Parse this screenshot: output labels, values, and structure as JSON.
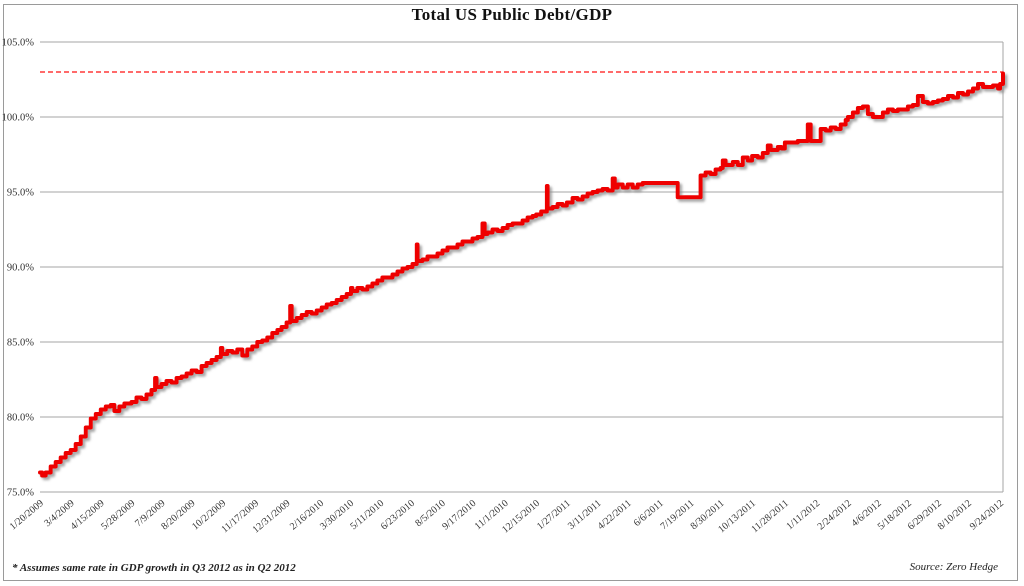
{
  "chart_data": {
    "type": "line",
    "title": "Total US Public Debt/GDP",
    "footnote": "* Assumes same rate in GDP growth in Q3 2012 as in Q2 2012",
    "source": "Source: Zero Hedge",
    "grid": true,
    "legend": "none",
    "ylim": [
      75,
      105
    ],
    "y_tick_labels": [
      "75.0%",
      "80.0%",
      "85.0%",
      "90.0%",
      "95.0%",
      "100.0%",
      "105.0%"
    ],
    "x_domain": [
      "1/20/2009",
      "9/28/2012"
    ],
    "x_tick_labels": [
      "1/20/2009",
      "3/4/2009",
      "4/15/2009",
      "5/28/2009",
      "7/9/2009",
      "8/20/2009",
      "10/2/2009",
      "11/17/2009",
      "12/31/2009",
      "2/16/2010",
      "3/30/2010",
      "5/11/2010",
      "6/23/2010",
      "8/5/2010",
      "9/17/2010",
      "11/1/2010",
      "12/15/2010",
      "1/27/2011",
      "3/11/2011",
      "4/22/2011",
      "6/6/2011",
      "7/19/2011",
      "8/30/2011",
      "10/13/2011",
      "11/28/2011",
      "1/11/2012",
      "2/24/2012",
      "4/6/2012",
      "5/18/2012",
      "6/29/2012",
      "8/10/2012",
      "9/24/2012"
    ],
    "threshold": {
      "value": 103.0,
      "style": "dashed",
      "color": "#ff1111"
    },
    "colors": {
      "line": "#ee0101",
      "grid": "#a6a6a6",
      "text": "#333333",
      "frame": "#9a9a9a",
      "background": "#ffffff",
      "shadow": "#8a8a8a"
    },
    "series": [
      {
        "name": "Total US Public Debt/GDP",
        "color": "#ee0101",
        "points": [
          [
            "1/20/2009",
            76.3
          ],
          [
            "1/23/2009",
            76.1
          ],
          [
            "1/28/2009",
            76.3
          ],
          [
            "2/4/2009",
            76.7
          ],
          [
            "2/11/2009",
            77.0
          ],
          [
            "2/18/2009",
            77.3
          ],
          [
            "2/25/2009",
            77.6
          ],
          [
            "3/4/2009",
            77.8
          ],
          [
            "3/11/2009",
            78.2
          ],
          [
            "3/18/2009",
            78.7
          ],
          [
            "3/25/2009",
            79.3
          ],
          [
            "4/1/2009",
            79.9
          ],
          [
            "4/8/2009",
            80.2
          ],
          [
            "4/15/2009",
            80.5
          ],
          [
            "4/22/2009",
            80.7
          ],
          [
            "4/29/2009",
            80.8
          ],
          [
            "5/4/2009",
            80.4
          ],
          [
            "5/11/2009",
            80.7
          ],
          [
            "5/18/2009",
            80.9
          ],
          [
            "5/28/2009",
            81.0
          ],
          [
            "6/4/2009",
            81.3
          ],
          [
            "6/11/2009",
            81.2
          ],
          [
            "6/18/2009",
            81.5
          ],
          [
            "6/25/2009",
            81.8
          ],
          [
            "6/30/2009",
            82.6
          ],
          [
            "7/2/2009",
            82.0
          ],
          [
            "7/9/2009",
            82.2
          ],
          [
            "7/16/2009",
            82.4
          ],
          [
            "7/23/2009",
            82.3
          ],
          [
            "7/30/2009",
            82.6
          ],
          [
            "8/6/2009",
            82.7
          ],
          [
            "8/13/2009",
            82.9
          ],
          [
            "8/20/2009",
            83.1
          ],
          [
            "8/27/2009",
            83.0
          ],
          [
            "9/3/2009",
            83.4
          ],
          [
            "9/10/2009",
            83.6
          ],
          [
            "9/17/2009",
            83.8
          ],
          [
            "9/24/2009",
            84.0
          ],
          [
            "9/30/2009",
            84.6
          ],
          [
            "10/2/2009",
            84.2
          ],
          [
            "10/9/2009",
            84.4
          ],
          [
            "10/16/2009",
            84.3
          ],
          [
            "10/23/2009",
            84.5
          ],
          [
            "10/30/2009",
            84.1
          ],
          [
            "11/6/2009",
            84.5
          ],
          [
            "11/13/2009",
            84.7
          ],
          [
            "11/20/2009",
            85.0
          ],
          [
            "11/27/2009",
            85.1
          ],
          [
            "12/4/2009",
            85.3
          ],
          [
            "12/11/2009",
            85.6
          ],
          [
            "12/18/2009",
            85.8
          ],
          [
            "12/24/2009",
            86.0
          ],
          [
            "12/31/2009",
            86.3
          ],
          [
            "1/5/2010",
            87.4
          ],
          [
            "1/7/2010",
            86.4
          ],
          [
            "1/14/2010",
            86.6
          ],
          [
            "1/21/2010",
            86.8
          ],
          [
            "1/28/2010",
            87.0
          ],
          [
            "2/4/2010",
            86.9
          ],
          [
            "2/11/2010",
            87.1
          ],
          [
            "2/18/2010",
            87.3
          ],
          [
            "2/25/2010",
            87.5
          ],
          [
            "3/4/2010",
            87.6
          ],
          [
            "3/11/2010",
            87.8
          ],
          [
            "3/18/2010",
            88.0
          ],
          [
            "3/25/2010",
            88.2
          ],
          [
            "3/31/2010",
            88.6
          ],
          [
            "4/2/2010",
            88.4
          ],
          [
            "4/9/2010",
            88.6
          ],
          [
            "4/16/2010",
            88.5
          ],
          [
            "4/23/2010",
            88.7
          ],
          [
            "4/30/2010",
            88.9
          ],
          [
            "5/7/2010",
            89.1
          ],
          [
            "5/14/2010",
            89.3
          ],
          [
            "5/21/2010",
            89.3
          ],
          [
            "5/28/2010",
            89.5
          ],
          [
            "6/4/2010",
            89.7
          ],
          [
            "6/11/2010",
            89.9
          ],
          [
            "6/18/2010",
            90.0
          ],
          [
            "6/25/2010",
            90.2
          ],
          [
            "7/1/2010",
            91.5
          ],
          [
            "7/2/2010",
            90.4
          ],
          [
            "7/9/2010",
            90.5
          ],
          [
            "7/16/2010",
            90.7
          ],
          [
            "7/23/2010",
            90.7
          ],
          [
            "7/30/2010",
            90.9
          ],
          [
            "8/6/2010",
            91.1
          ],
          [
            "8/13/2010",
            91.3
          ],
          [
            "8/20/2010",
            91.3
          ],
          [
            "8/27/2010",
            91.5
          ],
          [
            "9/3/2010",
            91.7
          ],
          [
            "9/10/2010",
            91.7
          ],
          [
            "9/17/2010",
            91.9
          ],
          [
            "9/24/2010",
            92.0
          ],
          [
            "10/1/2010",
            92.9
          ],
          [
            "10/4/2010",
            92.2
          ],
          [
            "10/8/2010",
            92.3
          ],
          [
            "10/15/2010",
            92.5
          ],
          [
            "10/22/2010",
            92.4
          ],
          [
            "10/29/2010",
            92.6
          ],
          [
            "11/5/2010",
            92.8
          ],
          [
            "11/12/2010",
            92.9
          ],
          [
            "11/19/2010",
            92.9
          ],
          [
            "11/26/2010",
            93.1
          ],
          [
            "12/3/2010",
            93.3
          ],
          [
            "12/10/2010",
            93.4
          ],
          [
            "12/15/2010",
            93.5
          ],
          [
            "12/22/2010",
            93.7
          ],
          [
            "12/30/2010",
            95.4
          ],
          [
            "12/31/2010",
            93.9
          ],
          [
            "1/7/2011",
            94.0
          ],
          [
            "1/14/2011",
            94.2
          ],
          [
            "1/21/2011",
            94.1
          ],
          [
            "1/27/2011",
            94.3
          ],
          [
            "2/4/2011",
            94.6
          ],
          [
            "2/11/2011",
            94.5
          ],
          [
            "2/18/2011",
            94.7
          ],
          [
            "2/25/2011",
            94.9
          ],
          [
            "3/4/2011",
            95.0
          ],
          [
            "3/11/2011",
            95.1
          ],
          [
            "3/18/2011",
            95.2
          ],
          [
            "3/25/2011",
            95.1
          ],
          [
            "4/1/2011",
            95.9
          ],
          [
            "4/4/2011",
            95.3
          ],
          [
            "4/8/2011",
            95.5
          ],
          [
            "4/15/2011",
            95.3
          ],
          [
            "4/22/2011",
            95.5
          ],
          [
            "4/29/2011",
            95.3
          ],
          [
            "5/6/2011",
            95.5
          ],
          [
            "5/13/2011",
            95.6
          ],
          [
            "5/20/2011",
            95.6
          ],
          [
            "6/6/2011",
            95.6
          ],
          [
            "6/20/2011",
            95.6
          ],
          [
            "6/30/2011",
            95.6
          ],
          [
            "7/1/2011",
            94.65
          ],
          [
            "7/15/2011",
            94.65
          ],
          [
            "8/1/2011",
            94.65
          ],
          [
            "8/2/2011",
            96.1
          ],
          [
            "8/9/2011",
            96.3
          ],
          [
            "8/16/2011",
            96.2
          ],
          [
            "8/23/2011",
            96.5
          ],
          [
            "8/30/2011",
            96.6
          ],
          [
            "9/2/2011",
            97.1
          ],
          [
            "9/6/2011",
            96.8
          ],
          [
            "9/16/2011",
            97.0
          ],
          [
            "9/23/2011",
            96.8
          ],
          [
            "9/30/2011",
            97.3
          ],
          [
            "10/7/2011",
            97.1
          ],
          [
            "10/13/2011",
            97.4
          ],
          [
            "10/21/2011",
            97.3
          ],
          [
            "10/28/2011",
            97.6
          ],
          [
            "11/4/2011",
            98.1
          ],
          [
            "11/8/2011",
            97.8
          ],
          [
            "11/18/2011",
            98.0
          ],
          [
            "11/23/2011",
            97.9
          ],
          [
            "11/28/2011",
            98.3
          ],
          [
            "12/9/2011",
            98.3
          ],
          [
            "12/16/2011",
            98.4
          ],
          [
            "12/23/2011",
            98.4
          ],
          [
            "12/30/2011",
            99.5
          ],
          [
            "1/3/2012",
            98.4
          ],
          [
            "1/11/2012",
            98.4
          ],
          [
            "1/17/2012",
            99.2
          ],
          [
            "1/24/2012",
            99.1
          ],
          [
            "1/31/2012",
            99.3
          ],
          [
            "2/7/2012",
            99.2
          ],
          [
            "2/14/2012",
            99.5
          ],
          [
            "2/21/2012",
            99.8
          ],
          [
            "2/24/2012",
            100.0
          ],
          [
            "3/2/2012",
            100.3
          ],
          [
            "3/9/2012",
            100.6
          ],
          [
            "3/16/2012",
            100.7
          ],
          [
            "3/23/2012",
            100.2
          ],
          [
            "3/30/2012",
            100.0
          ],
          [
            "4/6/2012",
            100.0
          ],
          [
            "4/13/2012",
            100.3
          ],
          [
            "4/20/2012",
            100.5
          ],
          [
            "4/27/2012",
            100.4
          ],
          [
            "5/4/2012",
            100.5
          ],
          [
            "5/11/2012",
            100.5
          ],
          [
            "5/18/2012",
            100.7
          ],
          [
            "5/25/2012",
            100.8
          ],
          [
            "6/1/2012",
            101.4
          ],
          [
            "6/8/2012",
            101.0
          ],
          [
            "6/15/2012",
            100.9
          ],
          [
            "6/22/2012",
            101.0
          ],
          [
            "6/29/2012",
            101.1
          ],
          [
            "7/6/2012",
            101.2
          ],
          [
            "7/13/2012",
            101.4
          ],
          [
            "7/20/2012",
            101.3
          ],
          [
            "7/27/2012",
            101.6
          ],
          [
            "8/3/2012",
            101.5
          ],
          [
            "8/10/2012",
            101.7
          ],
          [
            "8/17/2012",
            101.9
          ],
          [
            "8/24/2012",
            102.2
          ],
          [
            "8/31/2012",
            102.0
          ],
          [
            "9/7/2012",
            102.0
          ],
          [
            "9/14/2012",
            102.1
          ],
          [
            "9/21/2012",
            101.9
          ],
          [
            "9/24/2012",
            102.2
          ],
          [
            "9/28/2012",
            102.9
          ]
        ]
      }
    ]
  }
}
